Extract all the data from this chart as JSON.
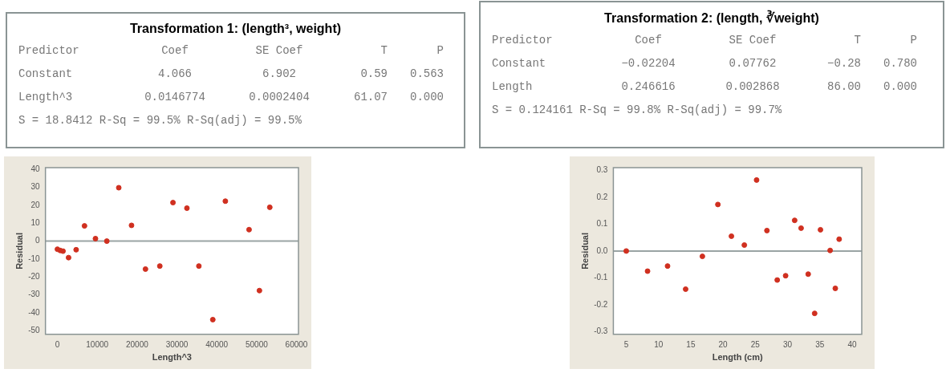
{
  "chart_data": [
    {
      "type": "other",
      "title": "Transformation 1: (length³, weight)",
      "annotations": [
        "Predictor",
        "Coef",
        "SE Coef",
        "T",
        "P",
        "Constant",
        "4.066",
        "6.902",
        "0.59",
        "0.563",
        "Length^3",
        "0.0146774",
        "0.0002404",
        "61.07",
        "0.000",
        "S = 18.8412 R-Sq = 99.5% R-Sq(adj) = 99.5%"
      ]
    },
    {
      "type": "other",
      "title": "Transformation 2: (length, ∛weight)",
      "annotations": [
        "Predictor",
        "Coef",
        "SE Coef",
        "T",
        "P",
        "Constant",
        "−0.02204",
        "0.07762",
        "−0.28",
        "0.780",
        "Length",
        "0.246616",
        "0.002868",
        "86.00",
        "0.000",
        "S = 0.124161 R-Sq = 99.8% R-Sq(adj) = 99.7%"
      ]
    },
    {
      "type": "scatter",
      "xlabel": "Length^3",
      "ylabel": "Residual",
      "marker": "circle",
      "legend": false,
      "grid": false,
      "x": [
        0,
        700,
        1400,
        2800,
        4700,
        6800,
        9550,
        12400,
        15400,
        18600,
        22100,
        25700,
        29000,
        32500,
        35500,
        39000,
        42150,
        48100,
        50700,
        53300
      ],
      "series": [
        {
          "color": "#d03020",
          "values": [
            -4.5,
            -5.2,
            -5.6,
            -9.2,
            -4.8,
            8.5,
            1.4,
            0,
            29.8,
            8.8,
            -15.6,
            -13.9,
            21.5,
            18.4,
            -13.9,
            -43.8,
            22.3,
            6.4,
            -27.6,
            18.9
          ]
        }
      ],
      "xlim": [
        -3000,
        60500
      ],
      "xticks": [
        0,
        10000,
        20000,
        30000,
        40000,
        50000,
        60000
      ],
      "ylim": [
        -52,
        41
      ],
      "yticks": [
        -50,
        -40,
        -30,
        -20,
        -10,
        0,
        10,
        20,
        30,
        40
      ],
      "ref_lines": [
        {
          "axis": "y",
          "value": 0,
          "color": "#9aa4a4"
        }
      ]
    },
    {
      "type": "scatter",
      "xlabel": "Length (cm)",
      "ylabel": "Residual",
      "marker": "circle",
      "legend": false,
      "grid": false,
      "x": [
        5.0,
        8.3,
        11.4,
        14.2,
        16.8,
        19.2,
        21.3,
        23.3,
        25.2,
        26.8,
        28.4,
        29.7,
        31.1,
        32.1,
        33.2,
        34.2,
        35.1,
        36.6,
        37.4,
        38.0
      ],
      "series": [
        {
          "color": "#d03020",
          "values": [
            0.0,
            -0.075,
            -0.056,
            -0.142,
            -0.02,
            0.173,
            0.055,
            0.022,
            0.264,
            0.076,
            -0.108,
            -0.092,
            0.114,
            0.085,
            -0.086,
            -0.232,
            0.079,
            0.002,
            -0.139,
            0.044
          ]
        }
      ],
      "xlim": [
        3,
        41.5
      ],
      "xticks": [
        5,
        10,
        15,
        20,
        25,
        30,
        35,
        40
      ],
      "ylim": [
        -0.31,
        0.31
      ],
      "yticks": [
        {
          "value": -0.3,
          "label": "-0.3"
        },
        {
          "value": -0.2,
          "label": "-0.2"
        },
        {
          "value": -0.1,
          "label": "-0.1"
        },
        {
          "value": 0,
          "label": "0.0"
        },
        {
          "value": 0.1,
          "label": "0.1"
        },
        {
          "value": 0.2,
          "label": "0.2"
        },
        {
          "value": 0.3,
          "label": "0.3"
        }
      ],
      "ref_lines": [
        {
          "axis": "y",
          "value": 0,
          "color": "#9aa4a4"
        }
      ]
    }
  ]
}
